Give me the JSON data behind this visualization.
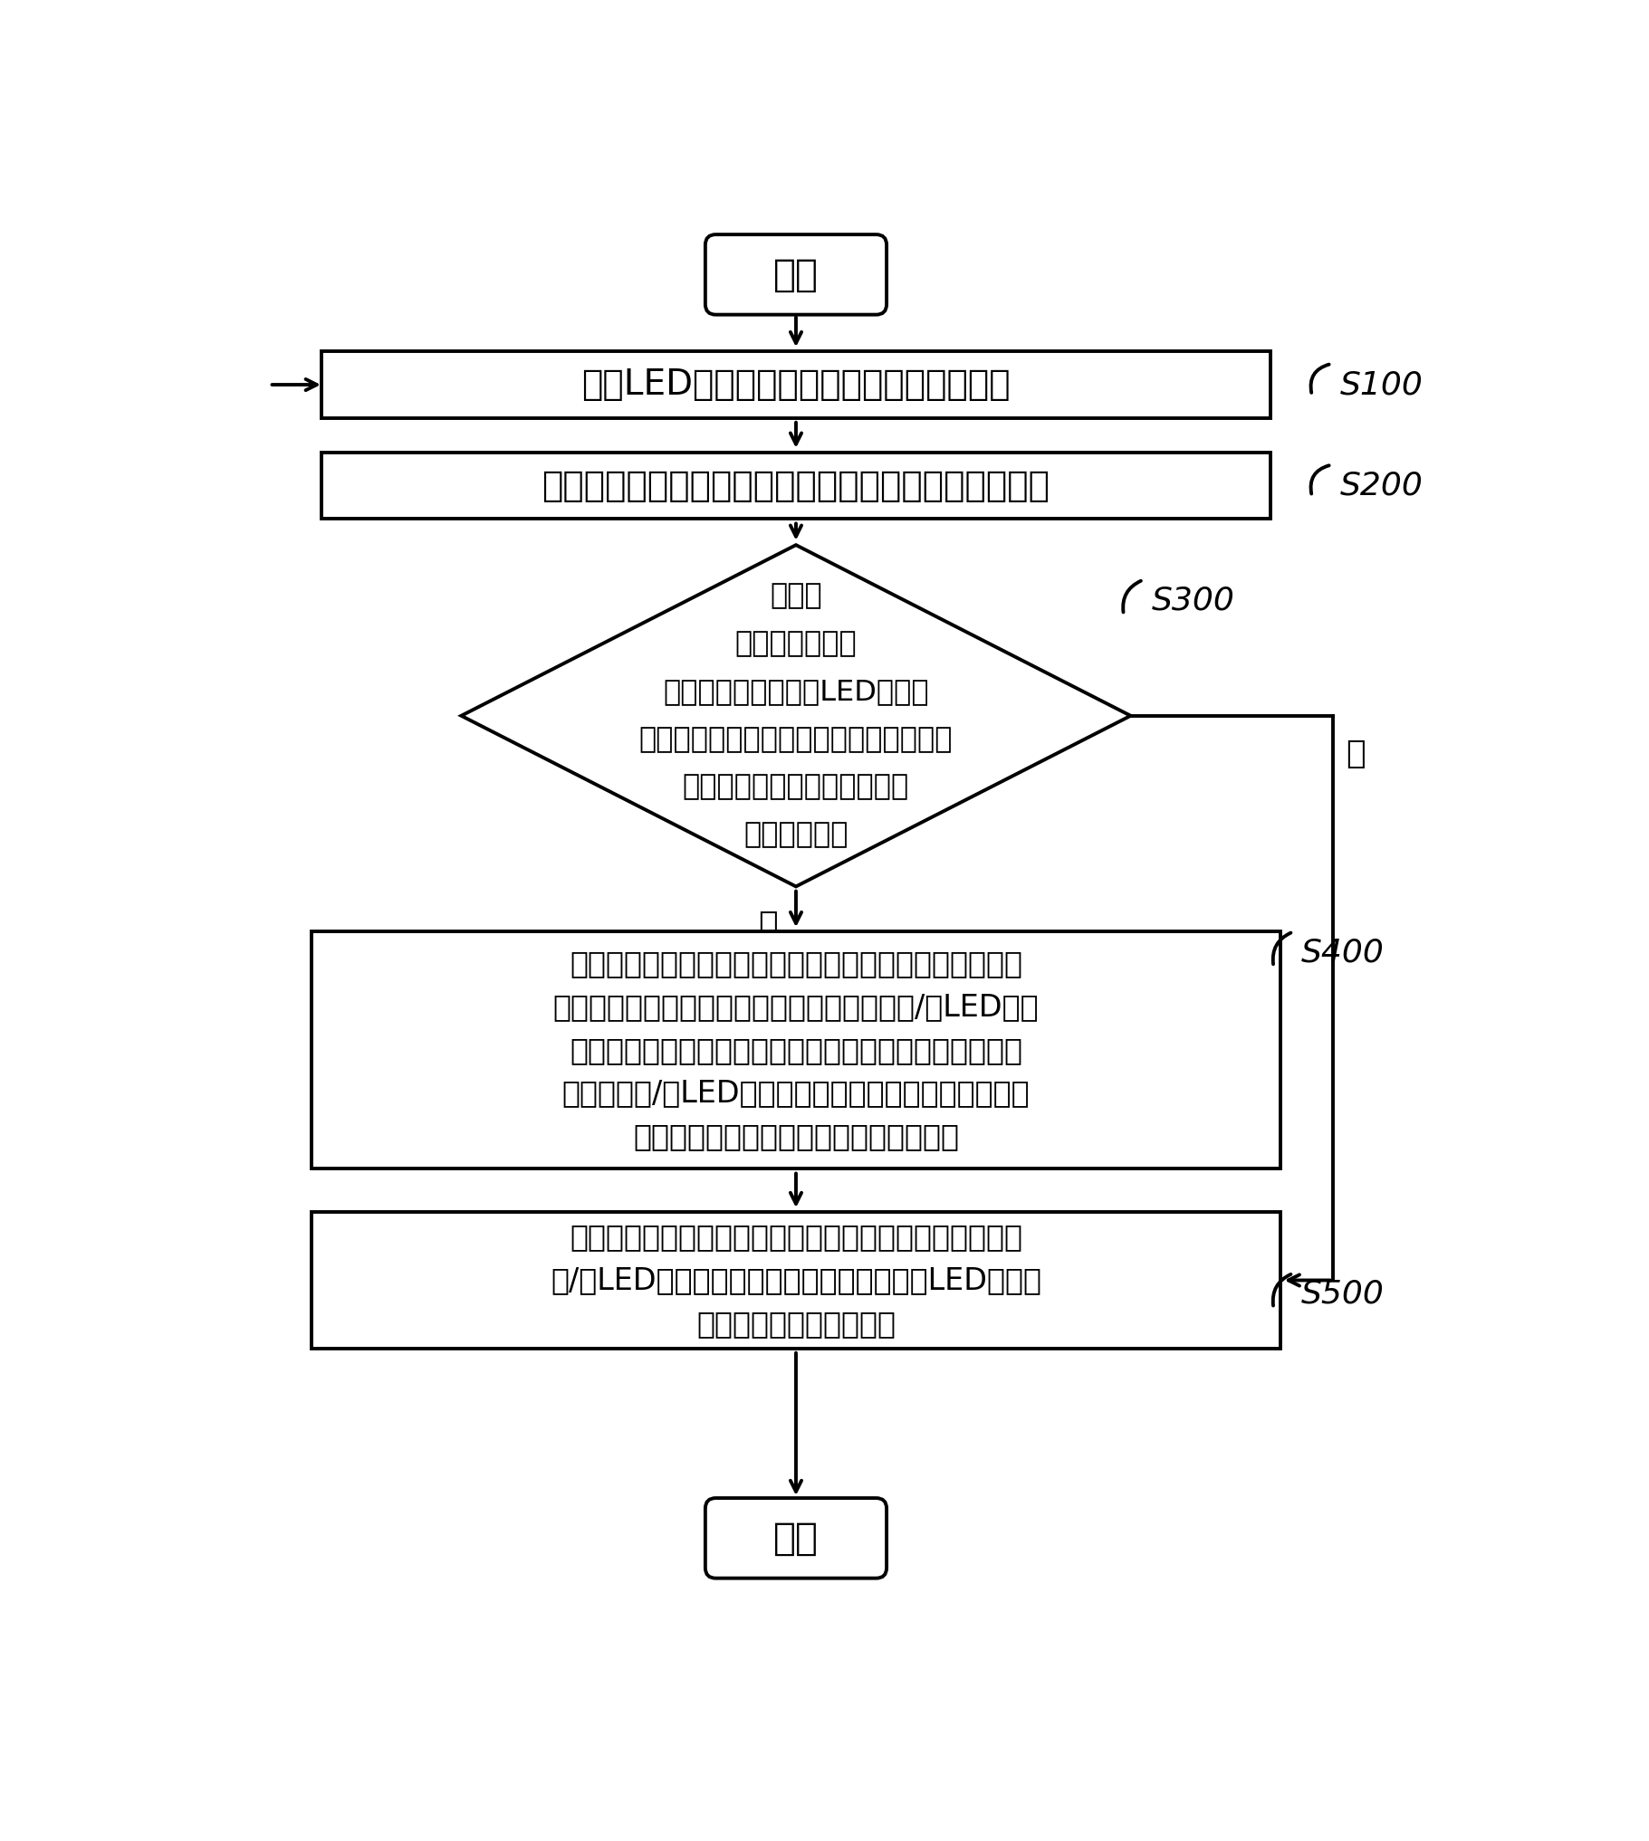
{
  "bg_color": "#ffffff",
  "line_color": "#000000",
  "text_color": "#000000",
  "fig_width": 18.21,
  "fig_height": 20.34,
  "start_text": "开始",
  "end_text": "结束",
  "s100_label": "S100",
  "s200_label": "S200",
  "s300_label": "S300",
  "s400_label": "S400",
  "s500_label": "S500",
  "box100_text": "控制LED显示屏的待测量区域显示指定画面",
  "box200_text": "控制相机对待测量区域进行拍照以取得指定画面的图像",
  "diamond_line1": "对指定",
  "diamond_line2": "画面的图像进行",
  "diamond_line3": "分析以取得图像中的LED像素点",
  "diamond_line4": "的图像灰度值，并利用取得的图像灰度值",
  "diamond_line5": "的分布状况判断相机的曝光量",
  "diamond_line6": "是否符合要求",
  "yes_text": "是",
  "no_text": "否",
  "box400_line1": "当判断相机的曝光量不符合要求时，根据取得的图像灰度",
  "box400_line2": "值的分布状况计算出相机的参数调整目标值及/或LED显示",
  "box400_line3": "屏的亮度调整目标值，并控制相机自动调整参数至参数调",
  "box400_line4": "整目标值及/或LED显示屏调整待测量区域的亮度至亮度",
  "box400_line5": "调整目标值，以实现相机的曝光量的调整",
  "box500_line1": "当判断相机的曝光量符合要求时，存储相机的当前参数值",
  "box500_line2": "及/或LED显示屏的当前亮度值以供后续进行LED显示屏",
  "box500_line3": "校正时设定相机的曝光量"
}
